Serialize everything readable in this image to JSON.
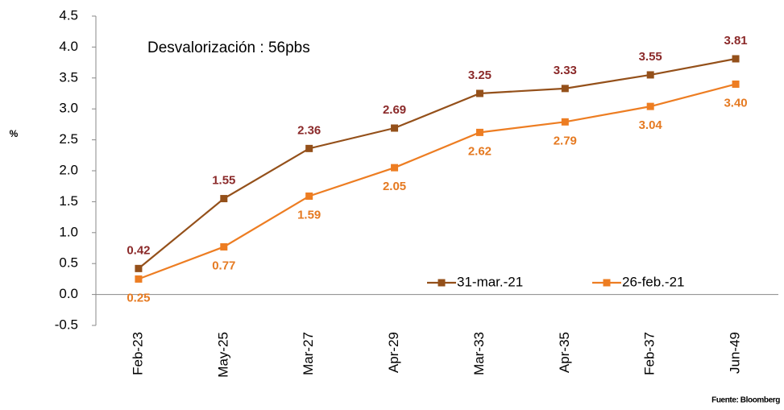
{
  "chart_data": {
    "type": "line",
    "annotation": "Desvalorización : 56pbs",
    "ylabel": "%",
    "source": "Fuente: Bloomberg",
    "categories": [
      "Feb-23",
      "May-25",
      "Mar-27",
      "Apr-29",
      "Mar-33",
      "Apr-35",
      "Feb-37",
      "Jun-49"
    ],
    "series": [
      {
        "name": "31-mar.-21",
        "color": "#94501a",
        "label_color": "#8b2a2a",
        "values": [
          0.42,
          1.55,
          2.36,
          2.69,
          3.25,
          3.33,
          3.55,
          3.81
        ],
        "value_labels": [
          "0.42",
          "1.55",
          "2.36",
          "2.69",
          "3.25",
          "3.33",
          "3.55",
          "3.81"
        ]
      },
      {
        "name": "26-feb.-21",
        "color": "#ed7d22",
        "label_color": "#e57a22",
        "values": [
          0.25,
          0.77,
          1.59,
          2.05,
          2.62,
          2.79,
          3.04,
          3.4
        ],
        "value_labels": [
          "0.25",
          "0.77",
          "1.59",
          "2.05",
          "2.62",
          "2.79",
          "3.04",
          "3.40"
        ]
      }
    ],
    "ylim": [
      -0.5,
      4.5
    ],
    "yticks": [
      -0.5,
      {
        "value": 0,
        "label": "0.0"
      },
      0.5,
      {
        "value": 1,
        "label": "1.0"
      },
      1.5,
      {
        "value": 2,
        "label": "2.0"
      },
      2.5,
      {
        "value": 3,
        "label": "3.0"
      },
      3.5,
      {
        "value": 4,
        "label": "4.0"
      },
      4.5
    ],
    "grid": false,
    "legend": "bottom-right"
  }
}
